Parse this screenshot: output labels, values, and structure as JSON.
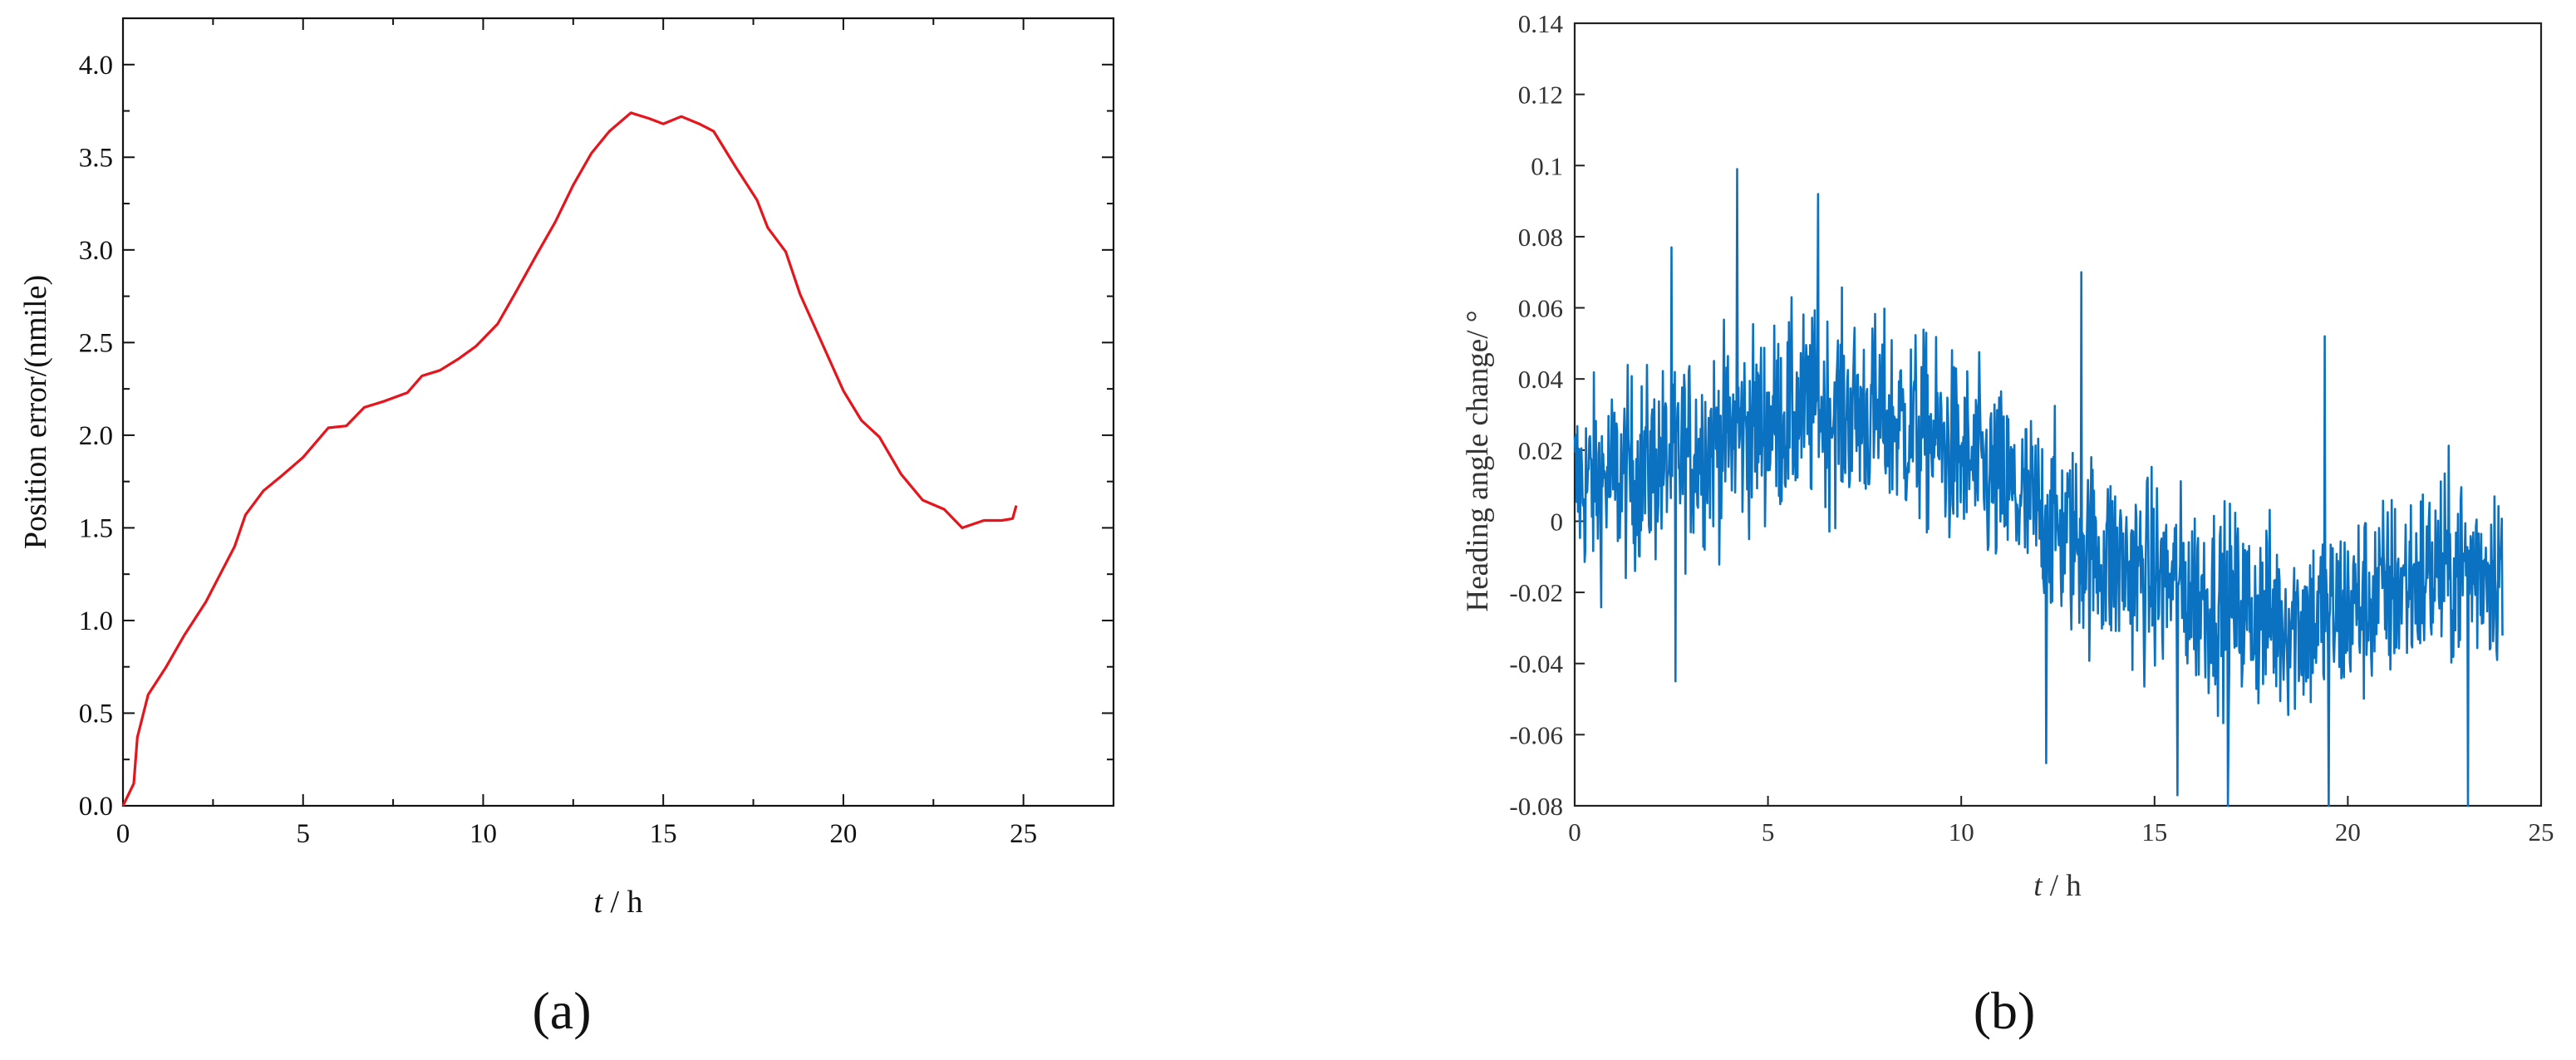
{
  "chart_data": [
    {
      "panel": "(a)",
      "type": "line",
      "xlabel_italic": "t",
      "xlabel_rest": " / h",
      "ylabel": "Position error/(nmile)",
      "xlim": [
        0,
        27.5
      ],
      "ylim": [
        0,
        4.25
      ],
      "xticks": [
        0,
        5,
        10,
        15,
        20,
        25
      ],
      "yticks": [
        0.0,
        0.5,
        1.0,
        1.5,
        2.0,
        2.5,
        3.0,
        3.5,
        4.0
      ],
      "ytick_labels": [
        "0.0",
        "0.5",
        "1.0",
        "1.5",
        "2.0",
        "2.5",
        "3.0",
        "3.5",
        "4.0"
      ],
      "color": "#e8141c",
      "grid": false,
      "series": [
        {
          "x": [
            0,
            0.3,
            0.4,
            0.7,
            1.2,
            1.7,
            2.3,
            2.7,
            3.1,
            3.4,
            3.9,
            4.4,
            5.0,
            5.7,
            6.2,
            6.7,
            7.2,
            7.9,
            8.3,
            8.8,
            9.3,
            9.8,
            10.4,
            10.9,
            11.5,
            12.0,
            12.5,
            13.0,
            13.5,
            14.1,
            14.6,
            15.0,
            15.5,
            16.0,
            16.4,
            17.0,
            17.6,
            17.9,
            18.4,
            18.8,
            19.4,
            20.0,
            20.5,
            21.0,
            21.6,
            22.2,
            22.8,
            23.3,
            23.9,
            24.4,
            24.7,
            24.8
          ],
          "y": [
            0.0,
            0.12,
            0.37,
            0.6,
            0.75,
            0.92,
            1.1,
            1.25,
            1.4,
            1.57,
            1.7,
            1.78,
            1.88,
            2.04,
            2.05,
            2.15,
            2.18,
            2.23,
            2.32,
            2.35,
            2.41,
            2.48,
            2.6,
            2.77,
            2.98,
            3.15,
            3.35,
            3.52,
            3.64,
            3.74,
            3.71,
            3.68,
            3.72,
            3.68,
            3.64,
            3.45,
            3.27,
            3.12,
            2.99,
            2.76,
            2.5,
            2.24,
            2.08,
            1.99,
            1.79,
            1.65,
            1.6,
            1.5,
            1.54,
            1.54,
            1.55,
            1.62
          ]
        }
      ]
    },
    {
      "panel": "(b)",
      "type": "line",
      "xlabel_italic": "t",
      "xlabel_rest": " / h",
      "ylabel": "Heading angle change/ °",
      "xlim": [
        0,
        25
      ],
      "ylim": [
        -0.08,
        0.14
      ],
      "xticks": [
        0,
        5,
        10,
        15,
        20,
        25
      ],
      "yticks": [
        -0.08,
        -0.06,
        -0.04,
        -0.02,
        0,
        0.02,
        0.04,
        0.06,
        0.08,
        0.1,
        0.12,
        0.14
      ],
      "ytick_labels": [
        "-0.08",
        "-0.06",
        "-0.04",
        "-0.02",
        "0",
        "0.02",
        "0.04",
        "0.06",
        "0.08",
        "0.1",
        "0.12",
        "0.14"
      ],
      "color": "#0a72c1",
      "grid": false,
      "series": [
        {
          "trend_x": [
            0,
            1,
            2,
            3,
            4,
            5,
            6,
            7,
            8,
            9,
            10,
            11,
            12,
            13,
            14,
            15,
            16,
            17,
            18,
            19,
            20,
            21,
            22,
            23,
            24
          ],
          "trend_y": [
            0.01,
            0.012,
            0.015,
            0.02,
            0.024,
            0.028,
            0.031,
            0.031,
            0.029,
            0.025,
            0.018,
            0.01,
            0.002,
            -0.006,
            -0.012,
            -0.016,
            -0.02,
            -0.024,
            -0.027,
            -0.028,
            -0.025,
            -0.02,
            -0.015,
            -0.013,
            -0.012
          ],
          "noise_amplitude": 0.018,
          "x_end": 24,
          "peaks": [
            {
              "x": 4.2,
              "y": 0.099
            },
            {
              "x": 6.3,
              "y": 0.092
            },
            {
              "x": 2.5,
              "y": 0.077
            },
            {
              "x": 13.1,
              "y": 0.07
            },
            {
              "x": 19.4,
              "y": 0.052
            },
            {
              "x": 2.6,
              "y": -0.045
            },
            {
              "x": 16.9,
              "y": -0.08
            },
            {
              "x": 19.5,
              "y": -0.08
            },
            {
              "x": 23.1,
              "y": -0.08
            },
            {
              "x": 12.2,
              "y": -0.068
            },
            {
              "x": 15.6,
              "y": -0.077
            }
          ]
        }
      ]
    }
  ]
}
